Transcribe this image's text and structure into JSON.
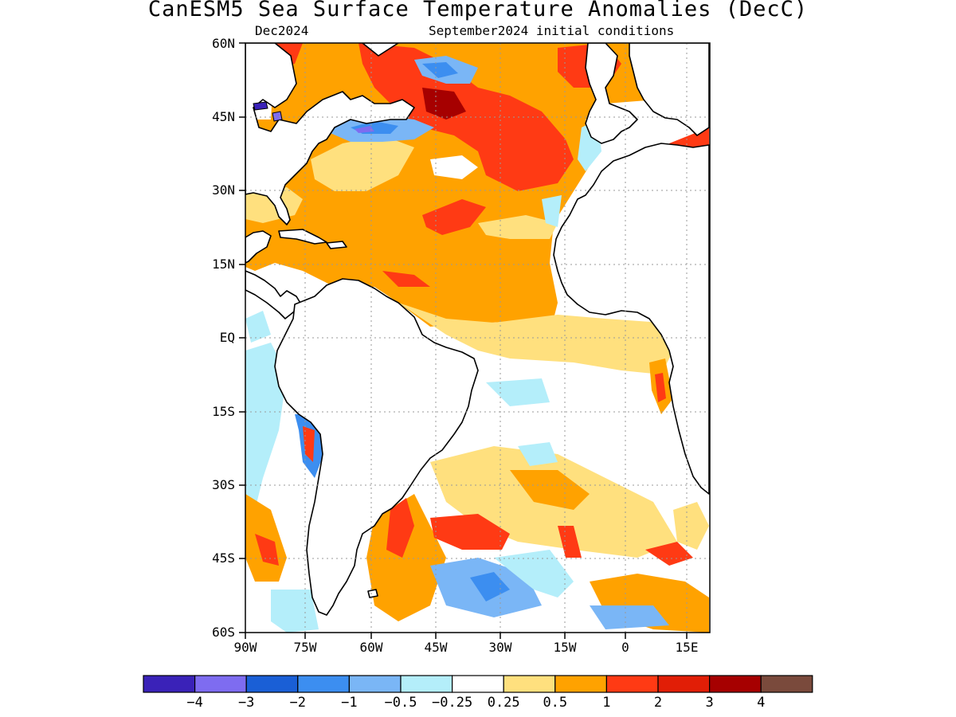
{
  "title": "CanESM5 Sea Surface Temperature Anomalies (DecC)",
  "subtitle_left": "Dec2024",
  "subtitle_right": "September2024 initial conditions",
  "lat_labels": [
    "60N",
    "45N",
    "30N",
    "15N",
    "EQ",
    "15S",
    "30S",
    "45S",
    "60S"
  ],
  "lon_labels": [
    "90W",
    "75W",
    "60W",
    "45W",
    "30W",
    "15W",
    "0",
    "15E"
  ],
  "colorbar": {
    "colors": [
      "#3a22b8",
      "#7e6cf0",
      "#1a5fd6",
      "#3c8ef0",
      "#7ab6f6",
      "#b4eefa",
      "#ffffff",
      "#ffe07e",
      "#ffa200",
      "#ff3a14",
      "#e11e06",
      "#a60000",
      "#7a4a3c"
    ],
    "labels": [
      "−4",
      "−3",
      "−2",
      "−1",
      "−0.5",
      "−0.25",
      "0.25",
      "0.5",
      "1",
      "2",
      "3",
      "4"
    ]
  },
  "map": {
    "domain": {
      "lon_min": -90,
      "lon_max": 18,
      "lat_min": -60,
      "lat_max": 60
    },
    "gridlines": "dotted",
    "land_color": "#ffffff",
    "coastline_color": "#000000"
  }
}
